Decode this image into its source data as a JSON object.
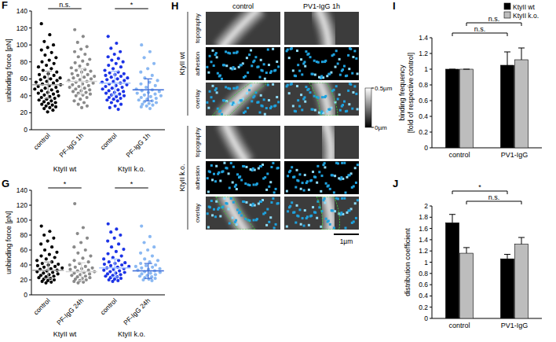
{
  "chart_data": [
    {
      "panel": "F",
      "type": "dot",
      "ylabel": "unbinding force [pN]",
      "ylim": [
        0,
        140
      ],
      "yticks": [
        0,
        20,
        40,
        60,
        80,
        100,
        120,
        140
      ],
      "categories": [
        "control",
        "PF-IgG 1h",
        "control",
        "PF-IgG 1h"
      ],
      "groups": [
        {
          "label": "KtyII wt",
          "categories": [
            0,
            1
          ]
        },
        {
          "label": "KtyII k.o.",
          "categories": [
            2,
            3
          ]
        }
      ],
      "colors": [
        "#000000",
        "#8a8a8a",
        "#1c33e6",
        "#8ab8f2"
      ],
      "points": [
        [
          125,
          112,
          104,
          100,
          97,
          94,
          91,
          88,
          85,
          82,
          80,
          78,
          76,
          74,
          72,
          70,
          68,
          66,
          65,
          64,
          62,
          61,
          60,
          59,
          58,
          57,
          56,
          55,
          54,
          53,
          52,
          51,
          50,
          49,
          48,
          47,
          46,
          45,
          44,
          43,
          42,
          41,
          40,
          39,
          38,
          37,
          36,
          35,
          34,
          33,
          32,
          31,
          30,
          29,
          28,
          27,
          26,
          25,
          23,
          21
        ],
        [
          118,
          110,
          103,
          98,
          95,
          92,
          89,
          86,
          83,
          81,
          79,
          77,
          75,
          73,
          71,
          70,
          69,
          68,
          66,
          65,
          64,
          63,
          62,
          61,
          60,
          59,
          58,
          57,
          56,
          55,
          54,
          53,
          52,
          51,
          50,
          49,
          48,
          47,
          46,
          45,
          44,
          43,
          42,
          41,
          40,
          38,
          36,
          34,
          32,
          30,
          28,
          26
        ],
        [
          110,
          102,
          96,
          92,
          89,
          86,
          84,
          82,
          80,
          78,
          76,
          74,
          72,
          70,
          68,
          67,
          66,
          65,
          64,
          63,
          62,
          61,
          60,
          59,
          58,
          57,
          56,
          55,
          54,
          53,
          52,
          51,
          50,
          49,
          48,
          47,
          46,
          45,
          44,
          43,
          42,
          41,
          40,
          39,
          38,
          37,
          36,
          35,
          34,
          32,
          30,
          28,
          26,
          24
        ],
        [
          100,
          92,
          85,
          78,
          72,
          68,
          64,
          61,
          58,
          56,
          54,
          52,
          50,
          48,
          47,
          46,
          45,
          44,
          43,
          42,
          41,
          40,
          39,
          38,
          37,
          36,
          35,
          34,
          33,
          32,
          31,
          30,
          29,
          28,
          27,
          25
        ]
      ],
      "means": [
        53,
        57,
        55,
        47
      ],
      "errors": [
        16,
        15,
        14,
        13
      ],
      "annotations": [
        {
          "text": "n.s.",
          "categories": [
            0,
            1
          ]
        },
        {
          "text": "*",
          "categories": [
            2,
            3
          ]
        }
      ]
    },
    {
      "panel": "G",
      "type": "dot",
      "ylabel": "unbinding force [pN]",
      "ylim": [
        0,
        140
      ],
      "yticks": [
        0,
        20,
        40,
        60,
        80,
        100,
        120,
        140
      ],
      "categories": [
        "control",
        "PF-IgG 24h",
        "control",
        "PF-IgG 24h"
      ],
      "groups": [
        {
          "label": "KtyII wt",
          "categories": [
            0,
            1
          ]
        },
        {
          "label": "KtyII k.o.",
          "categories": [
            2,
            3
          ]
        }
      ],
      "colors": [
        "#000000",
        "#8a8a8a",
        "#1c33e6",
        "#8ab8f2"
      ],
      "points": [
        [
          92,
          85,
          80,
          76,
          72,
          68,
          64,
          60,
          57,
          54,
          52,
          50,
          48,
          46,
          44,
          42,
          41,
          40,
          39,
          38,
          37,
          36,
          35,
          34,
          33,
          32,
          31,
          30,
          29,
          28,
          27,
          26,
          25,
          24,
          23,
          22,
          21,
          20,
          19,
          18,
          17,
          16
        ],
        [
          122,
          90,
          82,
          76,
          70,
          64,
          60,
          56,
          52,
          49,
          46,
          44,
          42,
          40,
          38,
          37,
          36,
          35,
          34,
          33,
          32,
          31,
          30,
          29,
          28,
          27,
          26,
          25,
          24,
          23,
          22,
          21,
          20,
          19,
          18,
          17,
          16
        ],
        [
          95,
          88,
          84,
          80,
          76,
          72,
          68,
          64,
          61,
          58,
          55,
          52,
          50,
          48,
          46,
          44,
          43,
          42,
          41,
          40,
          39,
          38,
          37,
          36,
          35,
          34,
          33,
          32,
          31,
          30,
          29,
          28,
          27,
          26,
          25,
          24,
          23,
          22,
          21,
          20,
          19,
          18
        ],
        [
          92,
          78,
          70,
          64,
          60,
          56,
          52,
          48,
          46,
          44,
          42,
          40,
          39,
          38,
          37,
          36,
          35,
          34,
          33,
          32,
          31,
          30,
          29,
          28,
          27,
          26,
          25,
          24,
          23,
          22,
          21,
          20,
          19
        ]
      ],
      "means": [
        33,
        31,
        36,
        32
      ],
      "errors": [
        11,
        12,
        12,
        10
      ],
      "annotations": [
        {
          "text": "*",
          "categories": [
            0,
            1
          ]
        },
        {
          "text": "*",
          "categories": [
            2,
            3
          ]
        }
      ]
    },
    {
      "panel": "I",
      "type": "bar",
      "ylabel": [
        "binding frequency",
        "[fold of respective control]"
      ],
      "ylim": [
        0,
        1.4
      ],
      "yticks": [
        0,
        0.2,
        0.4,
        0.6,
        0.8,
        1,
        1.2,
        1.4
      ],
      "categories": [
        "control",
        "PV1-IgG"
      ],
      "legend": "top-right",
      "series": [
        {
          "name": "KtyII wt",
          "color": "#000000",
          "values": [
            1,
            1.05
          ],
          "errors": [
            0,
            0.17
          ]
        },
        {
          "name": "KtyII k.o.",
          "color": "#bdbdbd",
          "values": [
            1,
            1.12
          ],
          "errors": [
            0,
            0.15
          ]
        }
      ],
      "annotations": [
        {
          "text": "n.s.",
          "series": 0,
          "categories": [
            0,
            1
          ]
        },
        {
          "text": "n.s.",
          "series": 1,
          "categories": [
            0,
            1
          ]
        }
      ]
    },
    {
      "panel": "J",
      "type": "bar",
      "ylabel": [
        "distribution coefficient"
      ],
      "ylim": [
        0,
        2
      ],
      "yticks": [
        0,
        0.2,
        0.4,
        0.6,
        0.8,
        1,
        1.2,
        1.4,
        1.6,
        1.8,
        2
      ],
      "categories": [
        "control",
        "PV1-IgG"
      ],
      "series": [
        {
          "color": "#000000",
          "values": [
            1.7,
            1.06
          ],
          "errors": [
            0.15,
            0.08
          ]
        },
        {
          "color": "#bdbdbd",
          "values": [
            1.16,
            1.32
          ],
          "errors": [
            0.1,
            0.12
          ]
        }
      ],
      "annotations": [
        {
          "text": "n.s.",
          "series": 1,
          "categories": [
            0,
            1
          ]
        },
        {
          "text": "*",
          "series": 0,
          "categories": [
            0,
            1
          ]
        }
      ]
    }
  ],
  "image_panel": {
    "panel": "H",
    "columns": [
      "control",
      "PV1-IgG 1h"
    ],
    "rows": [
      "KtyII wt",
      "KtyII k.o."
    ],
    "channels": [
      "topography",
      "adhesion",
      "overlay"
    ],
    "colorbar": {
      "range": [
        0,
        0.5
      ],
      "ticks": [
        {
          "value": 0.5,
          "label": "0.5µm"
        },
        {
          "value": 0,
          "label": "0µm"
        }
      ]
    },
    "scale_bar": "1µm"
  }
}
